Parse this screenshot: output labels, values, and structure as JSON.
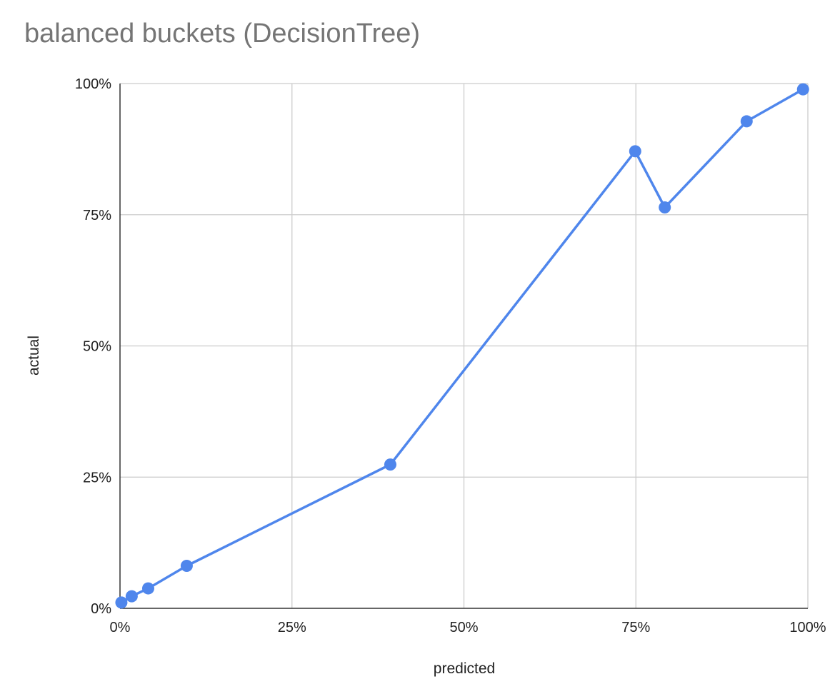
{
  "chart_data": {
    "type": "line",
    "title": "balanced buckets (DecisionTree)",
    "xlabel": "predicted",
    "ylabel": "actual",
    "xlim": [
      0,
      1
    ],
    "ylim": [
      0,
      1
    ],
    "x_ticks": [
      "0%",
      "25%",
      "50%",
      "75%",
      "100%"
    ],
    "y_ticks": [
      "0%",
      "25%",
      "50%",
      "75%",
      "100%"
    ],
    "x_tick_values": [
      0,
      0.25,
      0.5,
      0.75,
      1.0
    ],
    "y_tick_values": [
      0,
      0.25,
      0.5,
      0.75,
      1.0
    ],
    "grid": true,
    "markers": true,
    "series": [
      {
        "color": "#4f86ec",
        "points": [
          {
            "x": 0.002,
            "y": 0.011
          },
          {
            "x": 0.017,
            "y": 0.023
          },
          {
            "x": 0.041,
            "y": 0.038
          },
          {
            "x": 0.097,
            "y": 0.081
          },
          {
            "x": 0.393,
            "y": 0.274
          },
          {
            "x": 0.749,
            "y": 0.871
          },
          {
            "x": 0.792,
            "y": 0.764
          },
          {
            "x": 0.911,
            "y": 0.928
          },
          {
            "x": 0.993,
            "y": 0.989
          }
        ]
      }
    ]
  }
}
